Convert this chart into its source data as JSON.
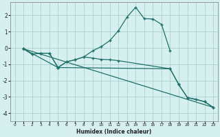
{
  "xlabel": "Humidex (Indice chaleur)",
  "bg_color": "#d6efef",
  "grid_color": "#b0d4d4",
  "line_color": "#1e7068",
  "xlim": [
    -0.5,
    23.5
  ],
  "ylim": [
    -4.5,
    2.8
  ],
  "xticks": [
    0,
    1,
    2,
    3,
    4,
    5,
    6,
    7,
    8,
    9,
    10,
    11,
    12,
    13,
    14,
    15,
    16,
    17,
    18,
    19,
    20,
    21,
    22,
    23
  ],
  "yticks": [
    -4,
    -3,
    -2,
    -1,
    0,
    1,
    2
  ],
  "line1_x": [
    1,
    2,
    3,
    4,
    5,
    6,
    7,
    8,
    9,
    10,
    11,
    12,
    13,
    14,
    15,
    16,
    17,
    18
  ],
  "line1_y": [
    -0.05,
    -0.38,
    -0.32,
    -0.32,
    -1.2,
    -0.85,
    -0.72,
    -0.55,
    -0.18,
    0.08,
    0.45,
    1.05,
    1.9,
    2.5,
    1.8,
    1.78,
    1.45,
    -0.18
  ],
  "line2_x": [
    1,
    2,
    3,
    4,
    5,
    6,
    7,
    8,
    9,
    10,
    11,
    12,
    18,
    19,
    20,
    22,
    23
  ],
  "line2_y": [
    -0.05,
    -0.38,
    -0.32,
    -0.32,
    -1.2,
    -0.85,
    -0.72,
    -0.55,
    -0.62,
    -0.7,
    -0.72,
    -0.78,
    -1.28,
    -2.25,
    -3.05,
    -3.3,
    -3.65
  ],
  "line3_x": [
    1,
    5,
    18,
    19,
    20,
    21,
    22,
    23
  ],
  "line3_y": [
    -0.05,
    -1.2,
    -1.28,
    -2.25,
    -3.05,
    -3.15,
    -3.3,
    -3.65
  ],
  "line4_x": [
    1,
    23
  ],
  "line4_y": [
    -0.05,
    -3.65
  ]
}
